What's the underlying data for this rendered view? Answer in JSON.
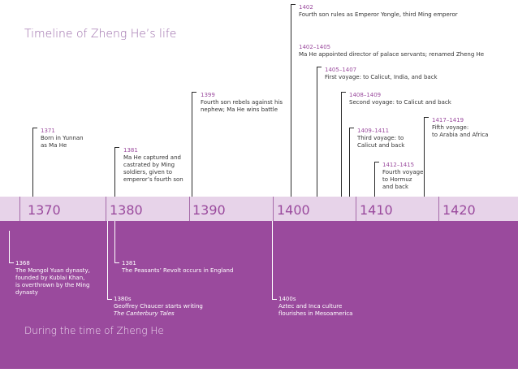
{
  "title": "Timeline of Zheng He’s life",
  "footer": "During the time of Zheng He",
  "decades": [
    "1370",
    "1380",
    "1390",
    "1400",
    "1410",
    "1420"
  ],
  "upper_events": [
    {
      "date": "1371",
      "text": "Born in Yunnan\nas Ma He"
    },
    {
      "date": "1381",
      "text": "Ma He captured and\ncastrated by Ming\nsoldiers, given to\nemperor’s fourth son"
    },
    {
      "date": "1399",
      "text": "Fourth son rebels against his\nnephew; Ma He wins battle"
    },
    {
      "date": "1402",
      "text": "Fourth son rules as Emperor Yongle, third Ming emperor"
    },
    {
      "date": "1402–1405",
      "text": "Ma He appointed director of palace servants; renamed Zheng He"
    },
    {
      "date": "1405–1407",
      "text": "First voyage: to Calicut, India, and back"
    },
    {
      "date": "1408–1409",
      "text": "Second voyage: to Calicut and back"
    },
    {
      "date": "1409–1411",
      "text": "Third voyage: to\nCalicut and back"
    },
    {
      "date": "1412–1415",
      "text": "Fourth voyage:\nto Hormuz\nand back"
    },
    {
      "date": "1417–1419",
      "text": "Fifth voyage:\nto Arabia and Africa"
    }
  ],
  "lower_events": [
    {
      "date": "1368",
      "text": "The Mongol Yuan dynasty,\nfounded by Kublai Khan,\nis overthrown by the Ming\ndynasty"
    },
    {
      "date": "1381",
      "text": "The Peasants’ Revolt occurs in England"
    },
    {
      "date": "1380s",
      "text": "Geoffrey Chaucer starts writing",
      "italic": "The Canterbury Tales"
    },
    {
      "date": "1400s",
      "text": "Aztec and Inca culture\nflourishes in Mesoamerica"
    }
  ]
}
